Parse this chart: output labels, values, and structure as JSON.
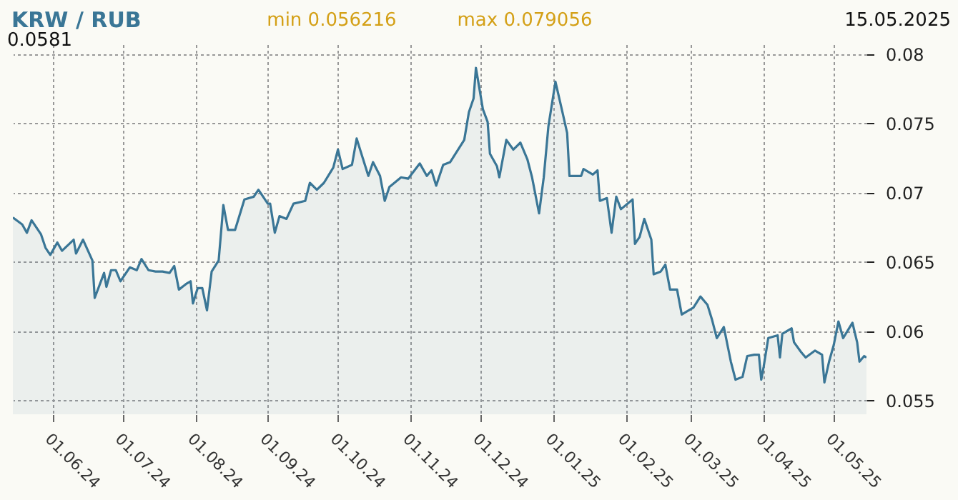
{
  "chart_data": {
    "type": "area",
    "title": "KRW / RUB",
    "annotations": [
      "min 0.056216",
      "max 0.079056",
      "15.05.2025",
      "0.0581"
    ],
    "x": [
      "2024-05-15",
      "2024-05-19",
      "2024-05-21",
      "2024-05-23",
      "2024-05-27",
      "2024-05-29",
      "2024-05-31",
      "2024-06-03",
      "2024-06-05",
      "2024-06-10",
      "2024-06-11",
      "2024-06-14",
      "2024-06-18",
      "2024-06-19",
      "2024-06-23",
      "2024-06-24",
      "2024-06-26",
      "2024-06-28",
      "2024-06-30",
      "2024-07-04",
      "2024-07-07",
      "2024-07-09",
      "2024-07-12",
      "2024-07-15",
      "2024-07-18",
      "2024-07-21",
      "2024-07-23",
      "2024-07-25",
      "2024-07-28",
      "2024-07-30",
      "2024-07-31",
      "2024-08-02",
      "2024-08-04",
      "2024-08-06",
      "2024-08-08",
      "2024-08-11",
      "2024-08-13",
      "2024-08-15",
      "2024-08-18",
      "2024-08-22",
      "2024-08-26",
      "2024-08-28",
      "2024-09-01",
      "2024-09-02",
      "2024-09-04",
      "2024-09-06",
      "2024-09-09",
      "2024-09-12",
      "2024-09-17",
      "2024-09-19",
      "2024-09-22",
      "2024-09-25",
      "2024-09-29",
      "2024-10-01",
      "2024-10-03",
      "2024-10-07",
      "2024-10-09",
      "2024-10-14",
      "2024-10-16",
      "2024-10-19",
      "2024-10-21",
      "2024-10-23",
      "2024-10-28",
      "2024-10-31",
      "2024-11-05",
      "2024-11-08",
      "2024-11-10",
      "2024-11-12",
      "2024-11-15",
      "2024-11-18",
      "2024-11-24",
      "2024-11-26",
      "2024-11-28",
      "2024-11-29",
      "2024-11-30",
      "2024-12-02",
      "2024-12-04",
      "2024-12-05",
      "2024-12-08",
      "2024-12-09",
      "2024-12-12",
      "2024-12-15",
      "2024-12-18",
      "2024-12-21",
      "2024-12-23",
      "2024-12-26",
      "2024-12-28",
      "2024-12-30",
      "2025-01-02",
      "2025-01-05",
      "2025-01-07",
      "2025-01-08",
      "2025-01-13",
      "2025-01-14",
      "2025-01-18",
      "2025-01-20",
      "2025-01-21",
      "2025-01-24",
      "2025-01-26",
      "2025-01-28",
      "2025-01-30",
      "2025-02-04",
      "2025-02-05",
      "2025-02-07",
      "2025-02-09",
      "2025-02-12",
      "2025-02-13",
      "2025-02-16",
      "2025-02-18",
      "2025-02-20",
      "2025-02-23",
      "2025-02-25",
      "2025-02-27",
      "2025-03-02",
      "2025-03-05",
      "2025-03-08",
      "2025-03-10",
      "2025-03-12",
      "2025-03-15",
      "2025-03-18",
      "2025-03-20",
      "2025-03-23",
      "2025-03-25",
      "2025-03-28",
      "2025-03-30",
      "2025-03-31",
      "2025-04-01",
      "2025-04-03",
      "2025-04-07",
      "2025-04-08",
      "2025-04-09",
      "2025-04-13",
      "2025-04-14",
      "2025-04-17",
      "2025-04-19",
      "2025-04-23",
      "2025-04-26",
      "2025-04-27",
      "2025-04-29",
      "2025-05-01",
      "2025-05-03",
      "2025-05-05",
      "2025-05-09",
      "2025-05-11",
      "2025-05-12",
      "2025-05-14",
      "2025-05-15"
    ],
    "series": [
      {
        "color": "#3a7696",
        "values": [
          0.0682,
          0.0677,
          0.0671,
          0.068,
          0.067,
          0.066,
          0.0655,
          0.0664,
          0.0658,
          0.0666,
          0.0656,
          0.0666,
          0.0651,
          0.0624,
          0.0642,
          0.0632,
          0.0644,
          0.0644,
          0.0636,
          0.0646,
          0.0644,
          0.0652,
          0.0644,
          0.0643,
          0.0643,
          0.0642,
          0.0647,
          0.063,
          0.0634,
          0.0636,
          0.062,
          0.0631,
          0.0631,
          0.0615,
          0.0643,
          0.0651,
          0.0691,
          0.0673,
          0.0673,
          0.0695,
          0.0697,
          0.0702,
          0.0692,
          0.0692,
          0.0671,
          0.0683,
          0.0681,
          0.0692,
          0.0694,
          0.0707,
          0.0702,
          0.0707,
          0.0718,
          0.0731,
          0.0717,
          0.072,
          0.0739,
          0.0712,
          0.0722,
          0.0712,
          0.0694,
          0.0704,
          0.0711,
          0.071,
          0.0721,
          0.0712,
          0.0716,
          0.0705,
          0.072,
          0.0722,
          0.0738,
          0.0758,
          0.0768,
          0.079,
          0.078,
          0.076,
          0.0751,
          0.0728,
          0.0719,
          0.0711,
          0.0738,
          0.0731,
          0.0736,
          0.0724,
          0.0711,
          0.0685,
          0.0711,
          0.0748,
          0.078,
          0.0758,
          0.0743,
          0.0712,
          0.0712,
          0.0717,
          0.0713,
          0.0716,
          0.0694,
          0.0696,
          0.0671,
          0.0697,
          0.0688,
          0.0695,
          0.0663,
          0.0668,
          0.0681,
          0.0666,
          0.0641,
          0.0643,
          0.0648,
          0.063,
          0.063,
          0.0612,
          0.0614,
          0.0617,
          0.0625,
          0.0619,
          0.0608,
          0.0595,
          0.0603,
          0.0578,
          0.0565,
          0.0567,
          0.0582,
          0.0583,
          0.0583,
          0.0565,
          0.0574,
          0.0595,
          0.0597,
          0.0581,
          0.0598,
          0.0602,
          0.0592,
          0.0585,
          0.0581,
          0.0586,
          0.0583,
          0.0563,
          0.0578,
          0.059,
          0.0607,
          0.0595,
          0.0606,
          0.0592,
          0.0578,
          0.0582,
          0.0581
        ]
      }
    ],
    "xlim": [
      "2024-05-15",
      "2025-05-15"
    ],
    "xticks": [
      {
        "value": "2024-06-01",
        "label": "01.06.24"
      },
      {
        "value": "2024-07-01",
        "label": "01.07.24"
      },
      {
        "value": "2024-08-01",
        "label": "01.08.24"
      },
      {
        "value": "2024-09-01",
        "label": "01.09.24"
      },
      {
        "value": "2024-10-01",
        "label": "01.10.24"
      },
      {
        "value": "2024-11-01",
        "label": "01.11.24"
      },
      {
        "value": "2024-12-01",
        "label": "01.12.24"
      },
      {
        "value": "2025-01-01",
        "label": "01.01.25"
      },
      {
        "value": "2025-02-01",
        "label": "01.02.25"
      },
      {
        "value": "2025-03-01",
        "label": "01.03.25"
      },
      {
        "value": "2025-04-01",
        "label": "01.04.25"
      },
      {
        "value": "2025-05-01",
        "label": "01.05.25"
      }
    ],
    "ylim": [
      0.054,
      0.0807
    ],
    "yticks": [
      0.055,
      0.06,
      0.065,
      0.07,
      0.075,
      0.08
    ],
    "grid": true
  }
}
